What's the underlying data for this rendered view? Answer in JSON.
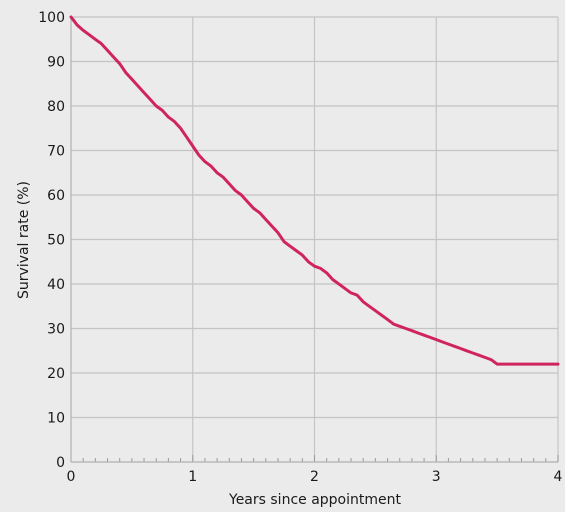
{
  "chart_data": {
    "type": "line",
    "title": "",
    "xlabel": "Years since appointment",
    "ylabel": "Survival rate (%)",
    "xlim": [
      0,
      4
    ],
    "ylim": [
      0,
      100
    ],
    "x_ticks": [
      0,
      1,
      2,
      3,
      4
    ],
    "y_ticks": [
      0,
      10,
      20,
      30,
      40,
      50,
      60,
      70,
      80,
      90,
      100
    ],
    "grid": true,
    "legend": "none",
    "colors": {
      "background": "#ebebeb",
      "grid": "#c4c4c4",
      "line": "#d0245e"
    },
    "series": [
      {
        "x": [
          0,
          0.02,
          0.05,
          0.1,
          0.15,
          0.2,
          0.25,
          0.3,
          0.35,
          0.4,
          0.45,
          0.5,
          0.55,
          0.6,
          0.65,
          0.7,
          0.75,
          0.8,
          0.85,
          0.9,
          0.95,
          1.0,
          1.05,
          1.1,
          1.15,
          1.2,
          1.25,
          1.3,
          1.35,
          1.4,
          1.45,
          1.5,
          1.55,
          1.6,
          1.65,
          1.7,
          1.75,
          1.8,
          1.85,
          1.9,
          1.95,
          2.0,
          2.05,
          2.1,
          2.15,
          2.2,
          2.25,
          2.3,
          2.35,
          2.4,
          2.45,
          2.5,
          2.55,
          2.6,
          2.65,
          2.7,
          2.75,
          2.8,
          2.85,
          2.9,
          2.95,
          3.0,
          3.05,
          3.1,
          3.15,
          3.2,
          3.25,
          3.3,
          3.35,
          3.4,
          3.45,
          3.5,
          3.55,
          3.6,
          3.65,
          3.7,
          3.75,
          3.8,
          3.85,
          3.9,
          3.95,
          3.98,
          4.0
        ],
        "values": [
          100,
          99.3,
          98.2,
          97.0,
          96.0,
          95.0,
          94.0,
          92.5,
          91.0,
          89.5,
          87.5,
          86.0,
          84.5,
          83.0,
          81.5,
          80.0,
          79.0,
          77.5,
          76.5,
          75.0,
          73.0,
          71.0,
          69.0,
          67.5,
          66.5,
          65.0,
          64.0,
          62.5,
          61.0,
          60.0,
          58.5,
          57.0,
          56.0,
          54.5,
          53.0,
          51.5,
          49.5,
          48.5,
          47.5,
          46.5,
          45.0,
          44.0,
          43.5,
          42.5,
          41.0,
          40.0,
          39.0,
          38.0,
          37.5,
          36.0,
          35.0,
          34.0,
          33.0,
          32.0,
          31.0,
          30.5,
          30.0,
          29.5,
          29.0,
          28.5,
          28.0,
          27.5,
          27.0,
          26.5,
          26.0,
          25.5,
          25.0,
          24.5,
          24.0,
          23.5,
          23.0,
          22.0,
          22.0,
          22.0,
          22.0,
          22.0,
          22.0,
          22.0,
          22.0,
          22.0,
          22.0,
          22.0,
          22.0
        ]
      }
    ]
  }
}
